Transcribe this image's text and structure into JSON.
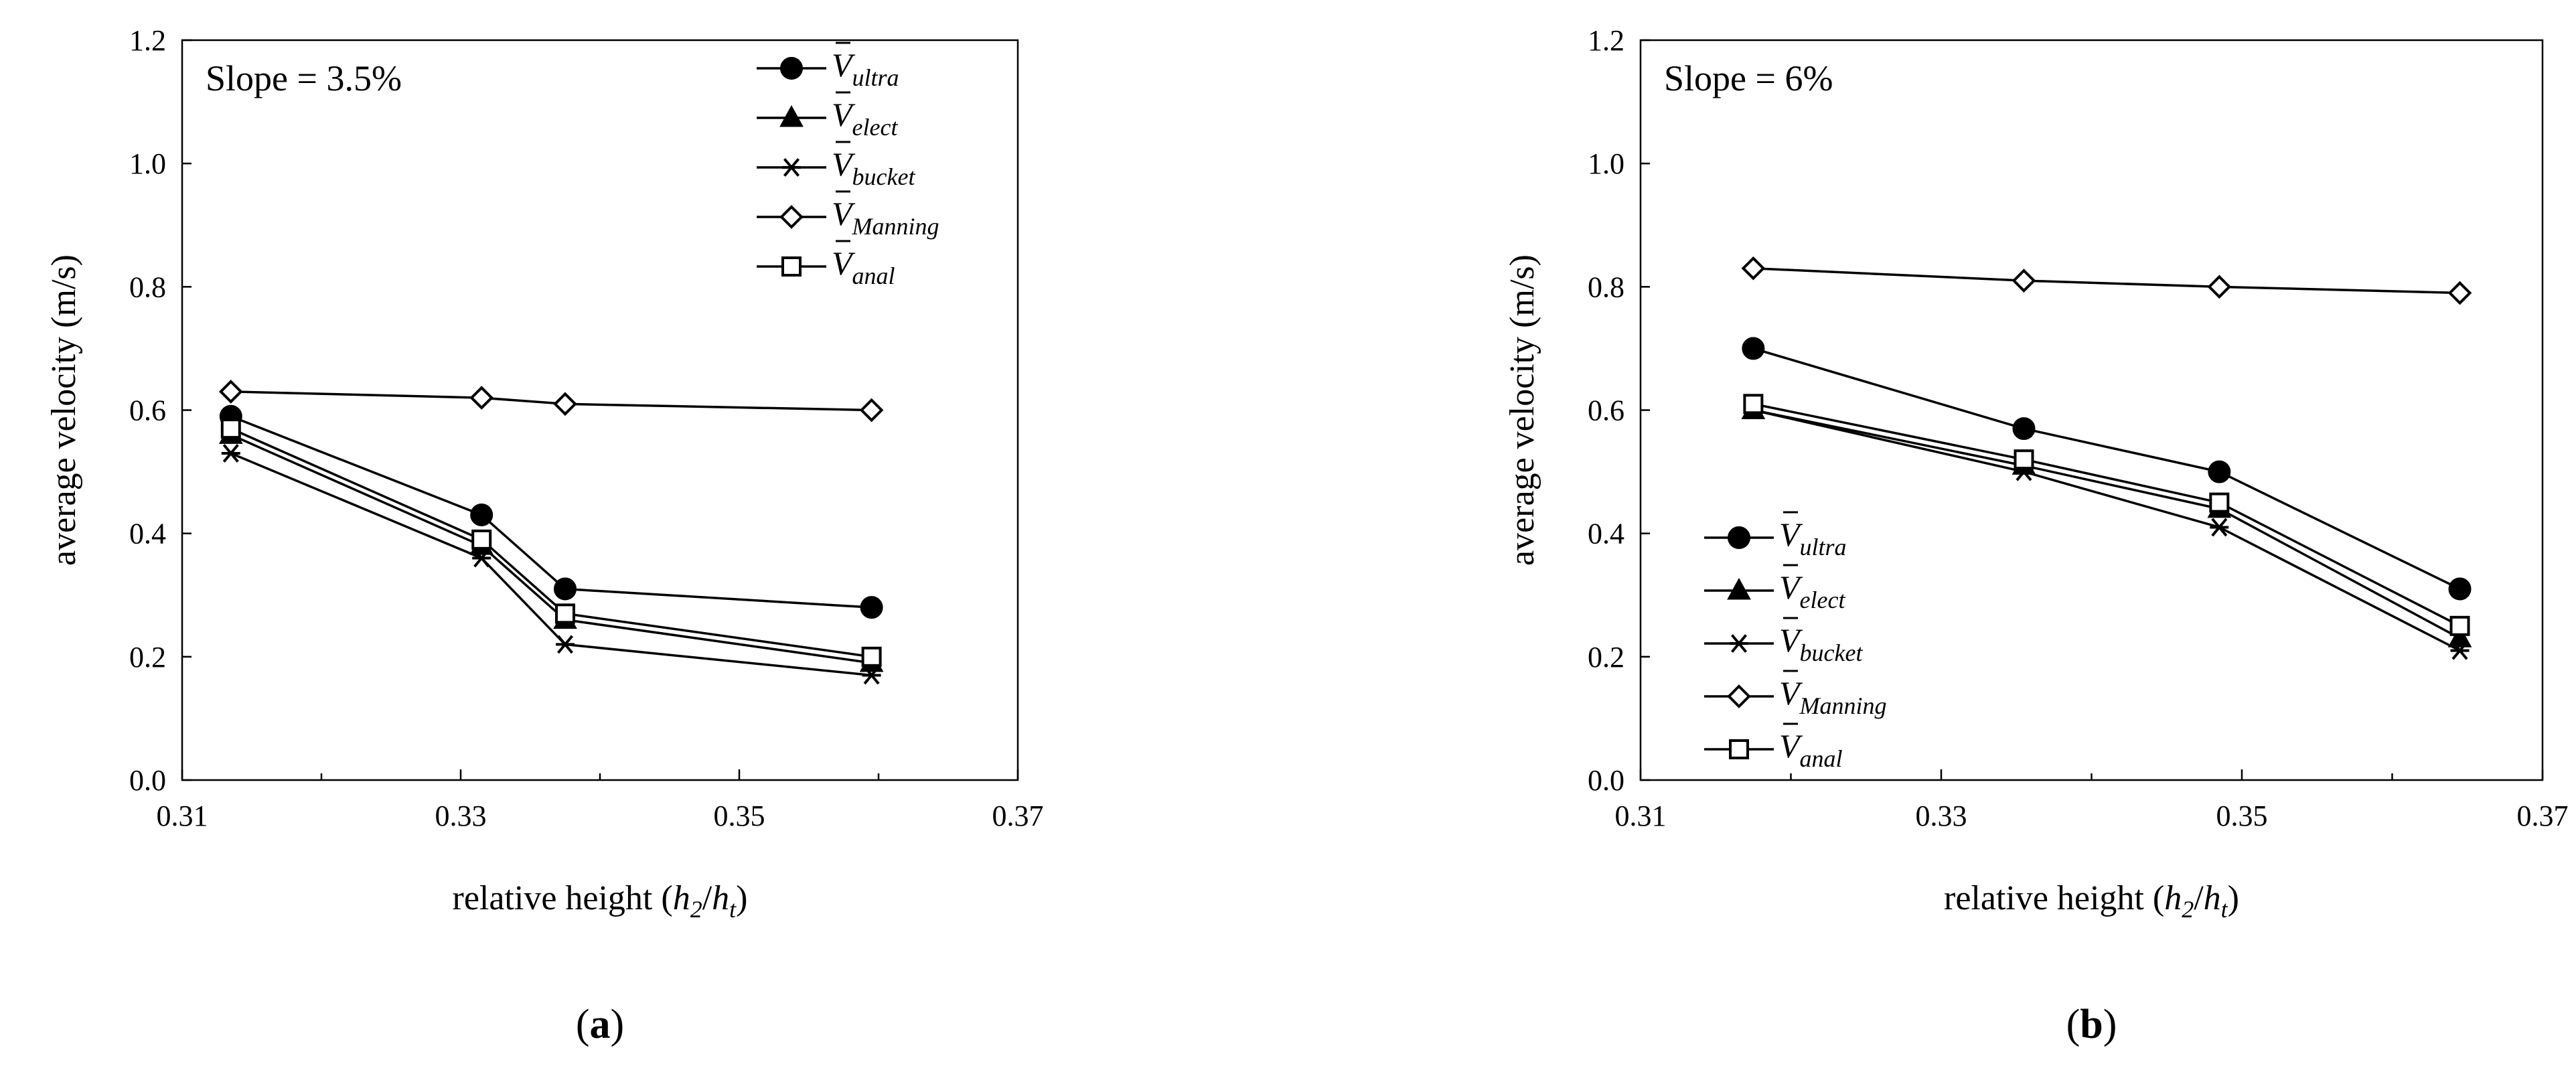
{
  "chart_data": [
    {
      "type": "line",
      "panel_label": "a",
      "annotation": "Slope = 3.5%",
      "xlabel_prefix": "relative height (",
      "xlabel_h2": "h",
      "xlabel_h2_sub": "2",
      "xlabel_slash": "/",
      "xlabel_ht": "h",
      "xlabel_ht_sub": "t",
      "xlabel_suffix": ")",
      "ylabel": "average velocity (m/s)",
      "xlim": [
        0.31,
        0.37
      ],
      "ylim": [
        0.0,
        1.2
      ],
      "xticks": [
        "0.31",
        "0.33",
        "0.35",
        "0.37"
      ],
      "yticks": [
        "0.0",
        "0.2",
        "0.4",
        "0.6",
        "0.8",
        "1.0",
        "1.2"
      ],
      "legend_position": "top-center",
      "x": [
        0.3135,
        0.3315,
        0.3375,
        0.3595
      ],
      "series": [
        {
          "name": "V",
          "subscript": "ultra",
          "marker": "circle",
          "values": [
            0.59,
            0.43,
            0.31,
            0.28
          ]
        },
        {
          "name": "V",
          "subscript": "elect",
          "marker": "triangle",
          "values": [
            0.56,
            0.38,
            0.26,
            0.19
          ]
        },
        {
          "name": "V",
          "subscript": "bucket",
          "marker": "asterisk",
          "values": [
            0.53,
            0.36,
            0.22,
            0.17
          ]
        },
        {
          "name": "V",
          "subscript": "Manning",
          "marker": "diamond",
          "values": [
            0.63,
            0.62,
            0.61,
            0.6
          ]
        },
        {
          "name": "V",
          "subscript": "anal",
          "marker": "square",
          "values": [
            0.57,
            0.39,
            0.27,
            0.2
          ]
        }
      ]
    },
    {
      "type": "line",
      "panel_label": "b",
      "annotation": "Slope = 6%",
      "xlabel_prefix": "relative height (",
      "xlabel_h2": "h",
      "xlabel_h2_sub": "2",
      "xlabel_slash": "/",
      "xlabel_ht": "h",
      "xlabel_ht_sub": "t",
      "xlabel_suffix": ")",
      "ylabel": "average velocity (m/s)",
      "xlim": [
        0.31,
        0.37
      ],
      "ylim": [
        0.0,
        1.2
      ],
      "xticks": [
        "0.31",
        "0.33",
        "0.35",
        "0.37"
      ],
      "yticks": [
        "0.0",
        "0.2",
        "0.4",
        "0.6",
        "0.8",
        "1.0",
        "1.2"
      ],
      "legend_position": "bottom-left",
      "x": [
        0.3175,
        0.3355,
        0.3485,
        0.3645
      ],
      "series": [
        {
          "name": "V",
          "subscript": "ultra",
          "marker": "circle",
          "values": [
            0.7,
            0.57,
            0.5,
            0.31
          ]
        },
        {
          "name": "V",
          "subscript": "elect",
          "marker": "triangle",
          "values": [
            0.6,
            0.51,
            0.44,
            0.23
          ]
        },
        {
          "name": "V",
          "subscript": "bucket",
          "marker": "asterisk",
          "values": [
            0.6,
            0.5,
            0.41,
            0.21
          ]
        },
        {
          "name": "V",
          "subscript": "Manning",
          "marker": "diamond",
          "values": [
            0.83,
            0.81,
            0.8,
            0.79
          ]
        },
        {
          "name": "V",
          "subscript": "anal",
          "marker": "square",
          "values": [
            0.61,
            0.52,
            0.45,
            0.25
          ]
        }
      ]
    }
  ]
}
